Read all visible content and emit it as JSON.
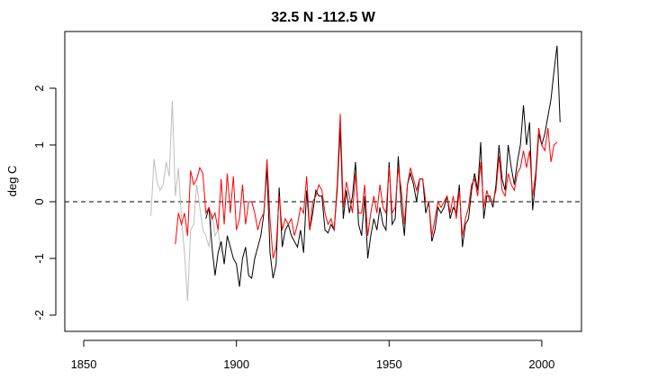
{
  "chart_data": {
    "type": "line",
    "title": "32.5 N  -112.5 W",
    "y_label": "deg C",
    "x": [
      1872,
      1873,
      1874,
      1875,
      1876,
      1877,
      1878,
      1879,
      1880,
      1881,
      1882,
      1883,
      1884,
      1885,
      1886,
      1887,
      1888,
      1889,
      1890,
      1891,
      1892,
      1893,
      1894,
      1895,
      1896,
      1897,
      1898,
      1899,
      1900,
      1901,
      1902,
      1903,
      1904,
      1905,
      1906,
      1907,
      1908,
      1909,
      1910,
      1911,
      1912,
      1913,
      1914,
      1915,
      1916,
      1917,
      1918,
      1919,
      1920,
      1921,
      1922,
      1923,
      1924,
      1925,
      1926,
      1927,
      1928,
      1929,
      1930,
      1931,
      1932,
      1933,
      1934,
      1935,
      1936,
      1937,
      1938,
      1939,
      1940,
      1941,
      1942,
      1943,
      1944,
      1945,
      1946,
      1947,
      1948,
      1949,
      1950,
      1951,
      1952,
      1953,
      1954,
      1955,
      1956,
      1957,
      1958,
      1959,
      1960,
      1961,
      1962,
      1963,
      1964,
      1965,
      1966,
      1967,
      1968,
      1969,
      1970,
      1971,
      1972,
      1973,
      1974,
      1975,
      1976,
      1977,
      1978,
      1979,
      1980,
      1981,
      1982,
      1983,
      1984,
      1985,
      1986,
      1987,
      1988,
      1989,
      1990,
      1991,
      1992,
      1993,
      1994,
      1995,
      1996,
      1997,
      1998,
      1999,
      2000,
      2001,
      2002,
      2003,
      2004,
      2005,
      2006
    ],
    "series": [
      {
        "color": "#bebebe",
        "values": [
          -0.25,
          0.75,
          0.35,
          0.2,
          0.3,
          0.7,
          0.45,
          1.78,
          0.1,
          0.6,
          -0.3,
          -0.9,
          -1.75,
          -0.5,
          -0.4,
          0.3,
          -0.1,
          -0.5,
          -0.6,
          -0.8,
          -0.2,
          -0.6,
          -0.5,
          -0.9,
          null,
          null,
          null,
          null,
          null,
          null,
          null,
          null,
          null,
          null,
          null,
          null,
          null,
          null,
          null,
          null,
          null,
          null,
          null,
          null,
          null,
          null,
          null,
          null,
          null,
          null,
          null,
          null,
          null,
          null,
          null,
          null,
          null,
          null,
          null,
          null,
          null,
          null,
          null,
          null,
          null,
          null,
          null,
          null,
          null,
          null,
          null,
          null,
          null,
          null,
          null,
          null,
          null,
          null,
          null,
          null,
          null,
          null,
          null,
          null,
          null,
          null,
          null,
          null,
          null,
          null,
          null,
          null,
          null,
          null,
          null,
          null,
          null,
          null,
          null,
          null,
          null,
          null,
          null,
          null,
          null,
          null,
          null,
          null,
          null,
          null,
          null,
          null,
          null,
          null,
          null,
          null,
          null,
          null,
          null,
          null,
          null,
          null,
          null,
          null,
          null,
          null,
          null,
          null,
          null,
          null,
          null,
          null,
          null,
          null,
          null
        ]
      },
      {
        "color": "#000000",
        "values": [
          null,
          null,
          null,
          null,
          null,
          null,
          null,
          null,
          null,
          null,
          null,
          null,
          null,
          null,
          null,
          null,
          null,
          null,
          -0.3,
          -0.1,
          -0.8,
          -1.3,
          -0.9,
          -0.7,
          -1.1,
          -0.6,
          -0.8,
          -1.0,
          -1.1,
          -1.5,
          -1.0,
          -0.8,
          -1.3,
          -1.35,
          -1.0,
          -0.8,
          -0.6,
          -0.2,
          0.6,
          -0.9,
          -1.35,
          -1.1,
          0.25,
          -0.8,
          -0.5,
          -0.4,
          -0.6,
          -0.7,
          -0.8,
          -0.5,
          -0.9,
          0.2,
          -0.5,
          -0.2,
          0.2,
          0.1,
          0.1,
          -0.5,
          -0.55,
          -0.4,
          -0.5,
          0.2,
          1.3,
          -0.3,
          0.2,
          -0.2,
          0.1,
          0.7,
          -0.4,
          -0.6,
          0.1,
          -1.0,
          -0.6,
          -0.3,
          -0.5,
          -0.1,
          -0.4,
          -0.5,
          0.7,
          -0.4,
          -0.3,
          0.8,
          -0.1,
          -0.6,
          0.3,
          0.5,
          0.3,
          0.0,
          0.4,
          0.4,
          -0.2,
          0.0,
          -0.7,
          -0.5,
          -0.1,
          -0.2,
          -0.1,
          0.1,
          -0.3,
          -0.1,
          -0.2,
          0.3,
          -0.8,
          -0.4,
          -0.3,
          0.2,
          0.5,
          0.2,
          1.05,
          -0.3,
          0.1,
          0.1,
          -0.1,
          0.3,
          1.0,
          0.4,
          0.2,
          1.0,
          0.6,
          0.3,
          0.7,
          1.0,
          1.7,
          1.0,
          1.4,
          -0.15,
          0.4,
          1.2,
          1.0,
          1.2,
          1.5,
          1.8,
          2.3,
          2.75,
          1.4
        ]
      },
      {
        "color": "#ff0000",
        "values": [
          null,
          null,
          null,
          null,
          null,
          null,
          null,
          null,
          -0.75,
          -0.2,
          -0.4,
          -0.2,
          -0.6,
          0.55,
          0.3,
          0.4,
          0.6,
          0.5,
          -0.2,
          -0.1,
          -0.3,
          -0.2,
          -0.5,
          0.4,
          -0.4,
          0.5,
          -0.2,
          0.45,
          -0.5,
          -0.3,
          0.3,
          -0.4,
          0.0,
          0.0,
          -0.2,
          -0.5,
          -0.3,
          -0.2,
          0.75,
          -0.3,
          -1.0,
          -0.8,
          0.1,
          -0.5,
          -0.3,
          -0.4,
          -0.3,
          -0.6,
          -0.4,
          -0.1,
          -0.2,
          0.45,
          -0.5,
          0.0,
          0.1,
          0.3,
          0.2,
          -0.2,
          -0.4,
          -0.3,
          -0.5,
          0.3,
          1.55,
          -0.1,
          0.35,
          0.1,
          -0.2,
          0.5,
          -0.2,
          -0.2,
          0.3,
          -0.6,
          -0.2,
          0.1,
          -0.2,
          0.3,
          -0.1,
          -0.2,
          0.6,
          -0.2,
          -0.1,
          0.6,
          0.2,
          -0.4,
          0.3,
          0.6,
          0.4,
          0.2,
          0.4,
          0.4,
          0.0,
          0.0,
          -0.6,
          -0.3,
          0.0,
          -0.1,
          0.0,
          0.1,
          -0.2,
          0.1,
          -0.3,
          0.2,
          -0.6,
          -0.3,
          -0.1,
          0.3,
          0.4,
          0.1,
          0.7,
          -0.1,
          0.2,
          0.0,
          0.0,
          0.2,
          0.8,
          0.2,
          0.1,
          0.5,
          0.3,
          0.2,
          0.5,
          0.6,
          0.9,
          0.6,
          0.9,
          0.1,
          0.5,
          1.3,
          1.0,
          0.9,
          1.3,
          0.7,
          1.0,
          1.05,
          null
        ]
      }
    ],
    "hline": 0,
    "xlim": [
      1843.8,
      2013
    ],
    "xticks": [
      1850,
      1900,
      1950,
      2000
    ],
    "ylim": [
      -2.286,
      3.0
    ],
    "yticks": [
      -2,
      -1,
      0,
      1,
      2
    ]
  }
}
